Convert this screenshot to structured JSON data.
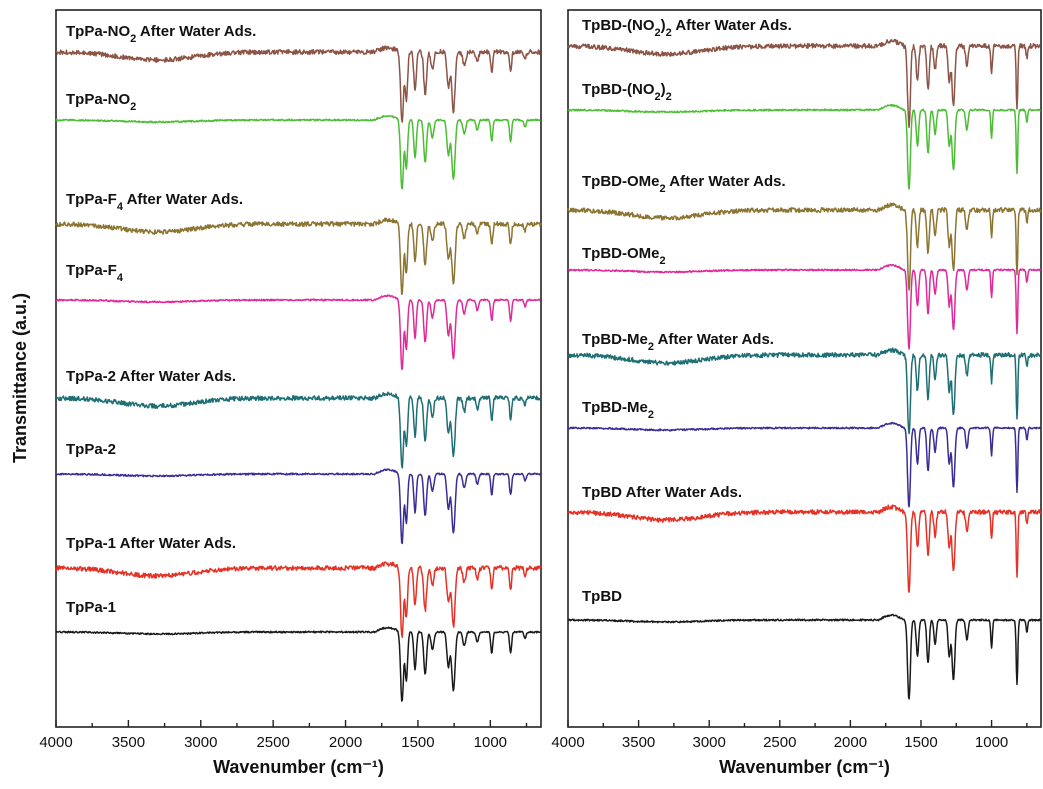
{
  "chart_data": [
    {
      "type": "line",
      "panel": "left",
      "xlabel": "Wavenumber (cm⁻¹)",
      "ylabel": "Transmittance (a.u.)",
      "xlim": [
        4000,
        650
      ],
      "xticks": [
        4000,
        3500,
        3000,
        2500,
        2000,
        1500,
        1000
      ],
      "series": [
        {
          "name": "TpPa-1",
          "label_html": "TpPa-1",
          "color": "#1a1a1a"
        },
        {
          "name": "TpPa-1 After Water Ads.",
          "label_html": "TpPa-1 After Water Ads.",
          "color": "#e53226"
        },
        {
          "name": "TpPa-2",
          "label_html": "TpPa-2",
          "color": "#3a2d96"
        },
        {
          "name": "TpPa-2 After Water Ads.",
          "label_html": "TpPa-2 After Water Ads.",
          "color": "#1d6f74"
        },
        {
          "name": "TpPa-F4",
          "label_html": "TpPa-F<tspan baseline-shift='sub' font-size='11'>4</tspan>",
          "color": "#e0299a"
        },
        {
          "name": "TpPa-F4 After Water Ads.",
          "label_html": "TpPa-F<tspan baseline-shift='sub' font-size='11'>4</tspan> After Water Ads.",
          "color": "#8c7431"
        },
        {
          "name": "TpPa-NO2",
          "label_html": "TpPa-NO<tspan baseline-shift='sub' font-size='11'>2</tspan>",
          "color": "#4cbd34"
        },
        {
          "name": "TpPa-NO2 After Water Ads.",
          "label_html": "TpPa-NO<tspan baseline-shift='sub' font-size='11'>2</tspan> After Water Ads.",
          "color": "#8c5446"
        }
      ]
    },
    {
      "type": "line",
      "panel": "right",
      "xlabel": "Wavenumber (cm⁻¹)",
      "xlim": [
        4000,
        650
      ],
      "xticks": [
        4000,
        3500,
        3000,
        2500,
        2000,
        1500,
        1000
      ],
      "series": [
        {
          "name": "TpBD",
          "label_html": "TpBD",
          "color": "#1a1a1a"
        },
        {
          "name": "TpBD After Water Ads.",
          "label_html": "TpBD After Water Ads.",
          "color": "#e53226"
        },
        {
          "name": "TpBD-Me2",
          "label_html": "TpBD-Me<tspan baseline-shift='sub' font-size='11'>2</tspan>",
          "color": "#3a2d96"
        },
        {
          "name": "TpBD-Me2 After Water Ads.",
          "label_html": "TpBD-Me<tspan baseline-shift='sub' font-size='11'>2</tspan> After Water Ads.",
          "color": "#1d6f74"
        },
        {
          "name": "TpBD-OMe2",
          "label_html": "TpBD-OMe<tspan baseline-shift='sub' font-size='11'>2</tspan>",
          "color": "#e0299a"
        },
        {
          "name": "TpBD-OMe2 After Water Ads.",
          "label_html": "TpBD-OMe<tspan baseline-shift='sub' font-size='11'>2</tspan> After Water Ads.",
          "color": "#8c7431"
        },
        {
          "name": "TpBD-(NO2)2",
          "label_html": "TpBD-(NO<tspan baseline-shift='sub' font-size='11'>2</tspan>)<tspan baseline-shift='sub' font-size='11'>2</tspan>",
          "color": "#4cbd34"
        },
        {
          "name": "TpBD-(NO2)2 After Water Ads.",
          "label_html": "TpBD-(NO<tspan baseline-shift='sub' font-size='11'>2</tspan>)<tspan baseline-shift='sub' font-size='11'>2</tspan> After Water Ads.",
          "color": "#8c5446"
        }
      ]
    }
  ]
}
